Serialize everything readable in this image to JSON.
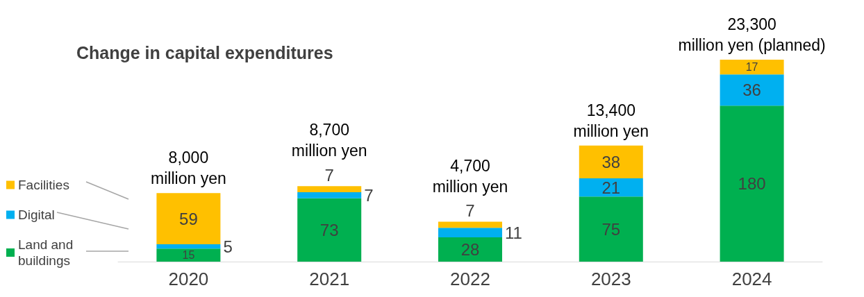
{
  "chart_data": {
    "type": "bar",
    "title": "Change in capital expenditures",
    "categories": [
      "2020",
      "2021",
      "2022",
      "2023",
      "2024"
    ],
    "stacked": true,
    "data_labels": true,
    "tick_labels": "x",
    "legend": "left",
    "series": [
      {
        "name": "Land and buildings",
        "color": "#00b050",
        "values": [
          15,
          73,
          28,
          75,
          180
        ]
      },
      {
        "name": "Digital",
        "color": "#00b0f0",
        "values": [
          5,
          7,
          11,
          21,
          36
        ]
      },
      {
        "name": "Facilities",
        "color": "#ffc000",
        "values": [
          59,
          7,
          7,
          38,
          17
        ]
      }
    ],
    "annotations": [
      "8,000\nmillion yen",
      "8,700\nmillion yen",
      "4,700\nmillion yen",
      "13,400\nmillion yen",
      "23,300\nmillion yen (planned)"
    ]
  }
}
